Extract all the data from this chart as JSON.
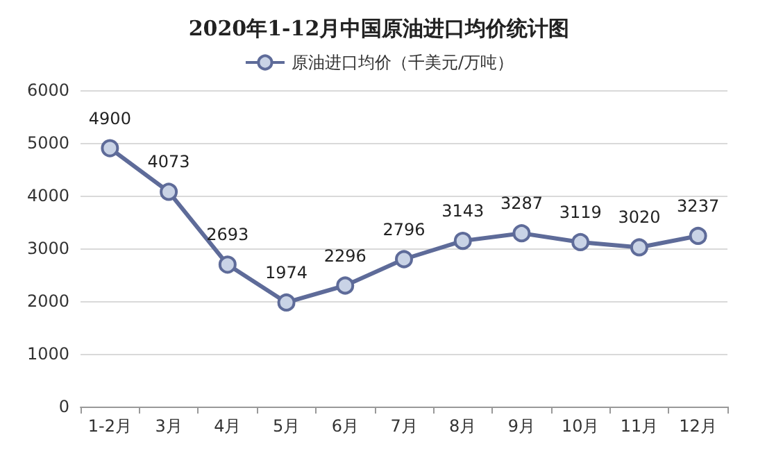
{
  "chart_data": {
    "type": "line",
    "title": "2020年1-12月中国原油进口均价统计图",
    "categories": [
      "1-2月",
      "3月",
      "4月",
      "5月",
      "6月",
      "7月",
      "8月",
      "9月",
      "10月",
      "11月",
      "12月"
    ],
    "series": [
      {
        "name": "原油进口均价（千美元/万吨）",
        "color": "#5e6b99",
        "values": [
          4900,
          4073,
          2693,
          1974,
          2296,
          2796,
          3143,
          3287,
          3119,
          3020,
          3237
        ]
      }
    ],
    "ylim": [
      0,
      6000
    ],
    "yticks": [
      0,
      1000,
      2000,
      3000,
      4000,
      5000,
      6000
    ],
    "grid": "y",
    "legend": "top",
    "marker": "circle",
    "line_style": "solid",
    "data_labels": true
  }
}
